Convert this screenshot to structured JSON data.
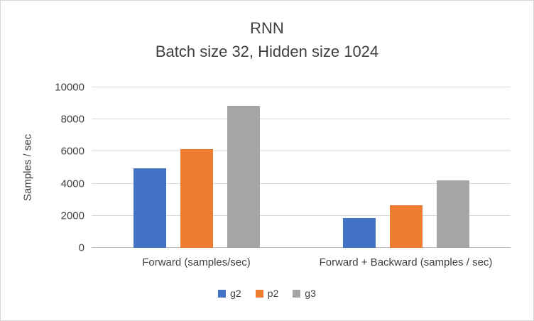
{
  "chart_data": {
    "type": "bar",
    "title": "RNN",
    "subtitle": "Batch size 32, Hidden size 1024",
    "ylabel": "Samples / sec",
    "ylim": [
      0,
      10000
    ],
    "yticks": [
      0,
      2000,
      4000,
      6000,
      8000,
      10000
    ],
    "categories": [
      "Forward (samples/sec)",
      "Forward + Backward (samples / sec)"
    ],
    "series": [
      {
        "name": "g2",
        "color": "#4472c4",
        "values": [
          4950,
          1850
        ]
      },
      {
        "name": "p2",
        "color": "#ed7d31",
        "values": [
          6150,
          2650
        ]
      },
      {
        "name": "g3",
        "color": "#a5a5a5",
        "values": [
          8850,
          4200
        ]
      }
    ],
    "legend_position": "bottom",
    "grid": true
  },
  "colors": {
    "text": "#404040",
    "grid": "#d9d9d9",
    "axis": "#bfbfbf",
    "frame_border": "#d6d6d6"
  }
}
